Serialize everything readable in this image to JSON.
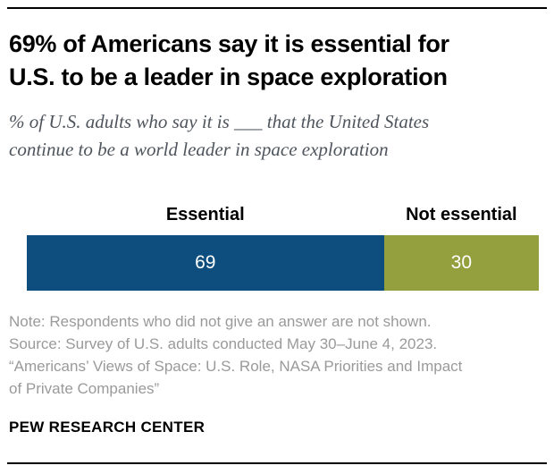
{
  "header": {
    "title_line1": "69% of Americans say it is essential for",
    "title_line2": "U.S. to be a leader in space exploration",
    "subtitle_line1": "% of U.S. adults who say it is ___ that the United States",
    "subtitle_line2": "continue to be a world leader in space exploration"
  },
  "chart_data": {
    "type": "bar",
    "orientation": "horizontal_stacked",
    "categories": [
      "Essential",
      "Not essential"
    ],
    "values": [
      69,
      30
    ],
    "data_labels": [
      69,
      30
    ],
    "colors": [
      "#0d4e7f",
      "#949f3e"
    ],
    "value_label_color": "#ffffff",
    "xlim": [
      0,
      100
    ],
    "title": "69% of Americans say it is essential for U.S. to be a leader in space exploration",
    "subtitle": "% of U.S. adults who say it is ___ that the United States continue to be a world leader in space exploration",
    "legend_position": "above-segments",
    "grid": false
  },
  "note": {
    "lines": [
      "Note: Respondents who did not give an answer are not shown.",
      "Source: Survey of U.S. adults conducted May 30–June 4, 2023.",
      "“Americans’ Views of Space: U.S. Role, NASA Priorities and Impact",
      "of Private Companies”"
    ]
  },
  "footer": {
    "brand": "PEW RESEARCH CENTER"
  }
}
